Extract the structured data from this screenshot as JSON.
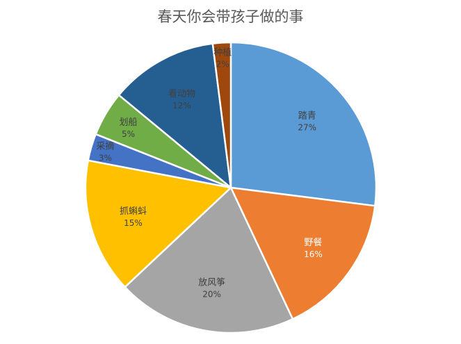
{
  "chart_data": {
    "type": "pie",
    "title": "春天你会带孩子做的事",
    "start_angle_deg": 0,
    "direction": "clockwise",
    "legend": "none",
    "data_labels": "category and percentage inside slices",
    "slices": [
      {
        "label": "踏青",
        "value": 27,
        "value_label": "27%",
        "color": "#5B9BD5",
        "text_color": "#404040"
      },
      {
        "label": "野餐",
        "value": 16,
        "value_label": "16%",
        "color": "#ED7D31",
        "text_color": "#FFFFFF"
      },
      {
        "label": "放风筝",
        "value": 20,
        "value_label": "20%",
        "color": "#A5A5A5",
        "text_color": "#404040"
      },
      {
        "label": "抓蝌蚪",
        "value": 15,
        "value_label": "15%",
        "color": "#FFC000",
        "text_color": "#404040"
      },
      {
        "label": "采摘",
        "value": 3,
        "value_label": "3%",
        "color": "#4472C4",
        "text_color": "#404040"
      },
      {
        "label": "划船",
        "value": 5,
        "value_label": "5%",
        "color": "#70AD47",
        "text_color": "#404040"
      },
      {
        "label": "看动物",
        "value": 12,
        "value_label": "12%",
        "color": "#255E91",
        "text_color": "#404040"
      },
      {
        "label": "种植",
        "value": 2,
        "value_label": "2%",
        "color": "#9E480E",
        "text_color": "#404040"
      }
    ]
  }
}
